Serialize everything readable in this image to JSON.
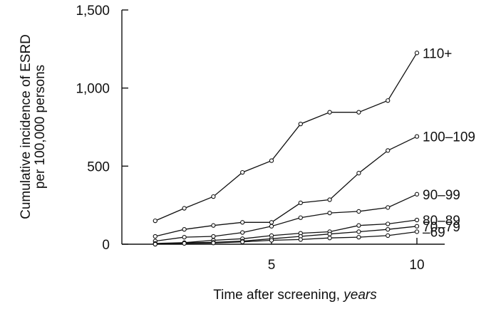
{
  "chart_data": {
    "type": "line",
    "title": "",
    "xlabel": "Time after screening, ",
    "xlabel_unit": "years",
    "ylabel": [
      "Cumulative incidence of ESRD",
      "per 100,000 persons"
    ],
    "xlim": [
      0,
      11
    ],
    "ylim": [
      0,
      1500
    ],
    "x_ticks": [
      5,
      10
    ],
    "x_tick_labels": [
      "5",
      "10"
    ],
    "y_ticks": [
      0,
      500,
      1000,
      1500
    ],
    "y_tick_labels": [
      "0",
      "500",
      "1,000",
      "1,500"
    ],
    "grid": false,
    "legend": "labels at line ends",
    "x": [
      1,
      2,
      3,
      4,
      5,
      6,
      7,
      8,
      9,
      10
    ],
    "series": [
      {
        "name": "110+",
        "values": [
          150,
          230,
          305,
          460,
          535,
          770,
          845,
          845,
          920,
          1225
        ]
      },
      {
        "name": "100–109",
        "values": [
          50,
          95,
          120,
          140,
          140,
          265,
          285,
          455,
          600,
          690
        ]
      },
      {
        "name": "90–99",
        "values": [
          20,
          45,
          50,
          75,
          115,
          170,
          200,
          210,
          235,
          320
        ]
      },
      {
        "name": "80–89",
        "values": [
          5,
          10,
          25,
          35,
          55,
          70,
          80,
          120,
          130,
          155
        ]
      },
      {
        "name": "70–79",
        "values": [
          0,
          8,
          12,
          20,
          35,
          50,
          65,
          80,
          95,
          115
        ]
      },
      {
        "name": "–69",
        "values": [
          0,
          5,
          8,
          15,
          25,
          30,
          40,
          45,
          55,
          80
        ]
      }
    ]
  }
}
